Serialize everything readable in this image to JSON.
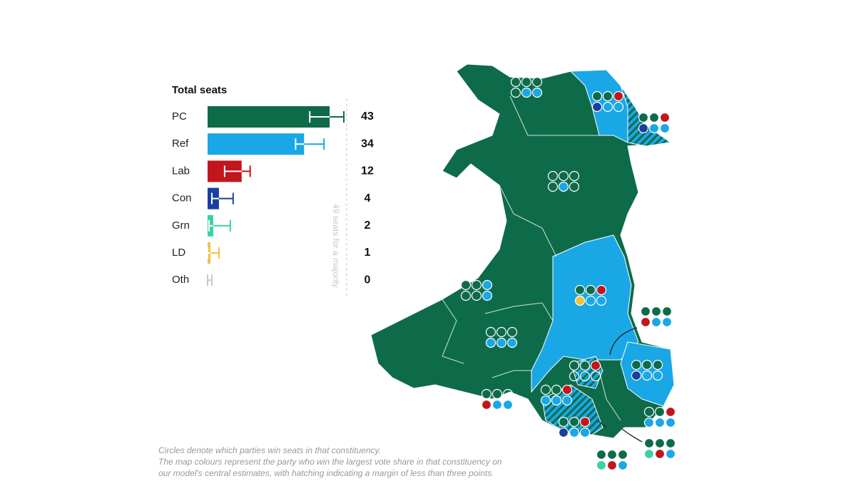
{
  "chart_data": {
    "type": "bar",
    "orientation": "horizontal",
    "title": "Total seats",
    "categories": [
      "PC",
      "Ref",
      "Lab",
      "Con",
      "Grn",
      "LD",
      "Oth"
    ],
    "values": [
      43,
      34,
      12,
      4,
      2,
      1,
      0
    ],
    "colors": [
      "#0e6b4a",
      "#1aa7e6",
      "#c0161c",
      "#1a3fa0",
      "#3dcfa8",
      "#f0c23a",
      "#c8c8c8"
    ],
    "error_low": [
      36,
      31,
      6,
      1.5,
      0.5,
      0,
      0
    ],
    "error_high": [
      48,
      41,
      15,
      9,
      8,
      4,
      1.5
    ],
    "majority": 49,
    "majority_label": "49 seats for a majority"
  },
  "notes": [
    "Circles denote which parties win seats in that constituency.",
    "The map colours represent the party who win the largest vote share in that constituency on",
    "our model's central estimates, with hatching indicating a margin of less than three points."
  ]
}
